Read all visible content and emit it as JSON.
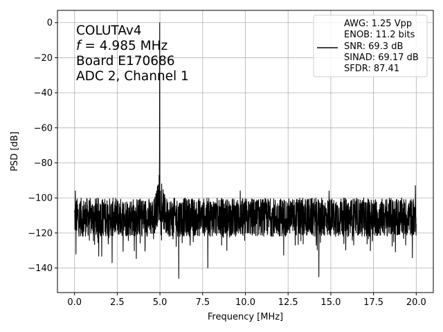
{
  "chart_data": {
    "type": "line",
    "xlabel": "Frequency [MHz]",
    "ylabel": "PSD [dB]",
    "xlim": [
      -1,
      21
    ],
    "ylim": [
      -154,
      7
    ],
    "xticks": [
      0.0,
      2.5,
      5.0,
      7.5,
      10.0,
      12.5,
      15.0,
      17.5,
      20.0
    ],
    "xtick_labels": [
      "0.0",
      "2.5",
      "5.0",
      "7.5",
      "10.0",
      "12.5",
      "15.0",
      "17.5",
      "20.0"
    ],
    "yticks": [
      0,
      -20,
      -40,
      -60,
      -80,
      -100,
      -120,
      -140
    ],
    "ytick_labels": [
      "0",
      "−20",
      "−40",
      "−60",
      "−80",
      "−100",
      "−120",
      "−140"
    ],
    "grid": true,
    "line_color": "#000000",
    "annotation": {
      "line1": "COLUTAv4",
      "line2_var": "f",
      "line2_rest": " = 4.985 MHz",
      "line3": "Board E170686",
      "line4": "ADC 2, Channel 1"
    },
    "legend": {
      "position": "top-right",
      "lines": [
        "AWG: 1.25 Vpp",
        "ENOB: 11.2 bits",
        "SNR: 69.3 dB",
        "SINAD: 69.17 dB",
        "SFDR: 87.41"
      ]
    },
    "series": [
      {
        "noise_floor_min": -122,
        "noise_floor_max": -100,
        "peak": {
          "x": 4.985,
          "y": 0
        },
        "spurs": [
          {
            "x": 0.05,
            "y": -96
          },
          {
            "x": 0.08,
            "y": -132
          },
          {
            "x": 2.2,
            "y": -137
          },
          {
            "x": 4.95,
            "y": -87
          },
          {
            "x": 5.1,
            "y": -92
          },
          {
            "x": 6.1,
            "y": -146
          },
          {
            "x": 7.8,
            "y": -140
          },
          {
            "x": 9.7,
            "y": -96
          },
          {
            "x": 14.3,
            "y": -145
          },
          {
            "x": 14.9,
            "y": -96
          },
          {
            "x": 19.95,
            "y": -93
          }
        ]
      }
    ]
  }
}
